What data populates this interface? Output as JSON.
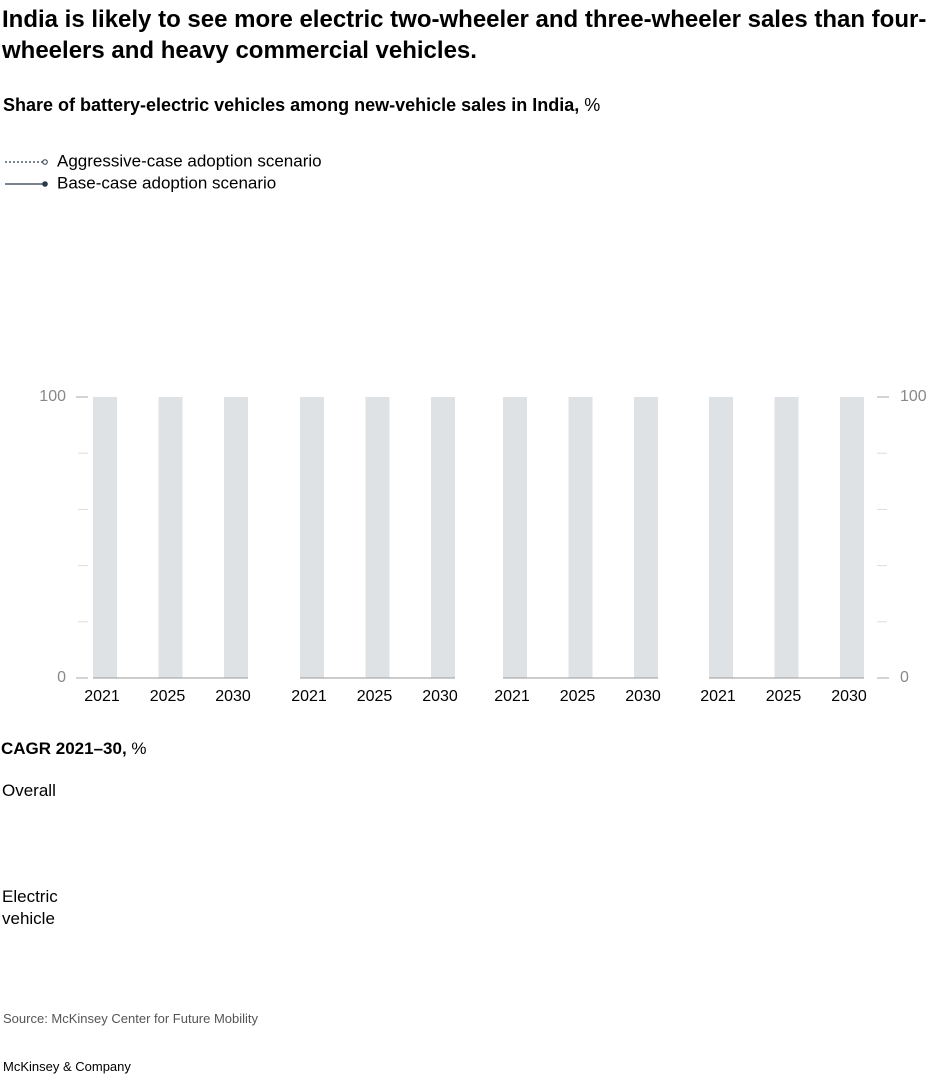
{
  "chart_data": {
    "type": "line",
    "title": "India is likely to see more electric two-wheeler and three-wheeler sales than four-wheelers and heavy commercial vehicles.",
    "subtitle": "Share of battery-electric vehicles among new-vehicle sales in India,",
    "subtitle_unit": "%",
    "series": [
      {
        "name": "Aggressive-case adoption scenario",
        "color": "#2b3a4a",
        "style": "dotted"
      },
      {
        "name": "Base-case adoption scenario",
        "color": "#2b3a4a",
        "style": "solid"
      }
    ],
    "panels": [
      {
        "categories": [
          "2021",
          "2025",
          "2030"
        ]
      },
      {
        "categories": [
          "2021",
          "2025",
          "2030"
        ]
      },
      {
        "categories": [
          "2021",
          "2025",
          "2030"
        ]
      },
      {
        "categories": [
          "2021",
          "2025",
          "2030"
        ]
      }
    ],
    "ylim": [
      0,
      100
    ],
    "yticks": [
      0,
      100
    ],
    "minor_yticks": [
      20,
      40,
      60,
      80
    ],
    "band_color": "#dfe2e5",
    "cagr_label": "CAGR 2021–30,",
    "cagr_unit": "%",
    "cagr_rows": [
      "Overall",
      "Electric vehicle"
    ],
    "source": "Source: McKinsey Center for Future Mobility",
    "footer": "McKinsey & Company"
  }
}
